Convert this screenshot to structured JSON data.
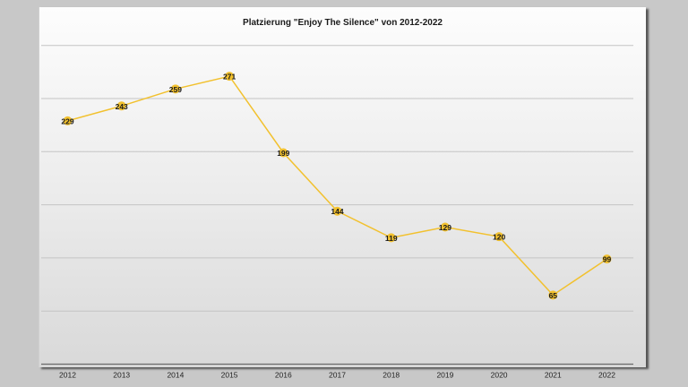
{
  "chart_data": {
    "type": "line",
    "title": "Platzierung \"Enjoy The Silence\" von 2012-2022",
    "xlabel": "",
    "ylabel": "",
    "categories": [
      "2012",
      "2013",
      "2014",
      "2015",
      "2016",
      "2017",
      "2018",
      "2019",
      "2020",
      "2021",
      "2022"
    ],
    "series": [
      {
        "name": "Platzierung",
        "values": [
          229,
          243,
          259,
          271,
          199,
          144,
          119,
          129,
          120,
          65,
          99
        ],
        "color": "#f2c12e"
      }
    ],
    "ylim": [
      0,
      300
    ],
    "gridlines": [
      50,
      100,
      150,
      200,
      250,
      300
    ],
    "grid": true,
    "data_labels": true,
    "legend": "none"
  }
}
